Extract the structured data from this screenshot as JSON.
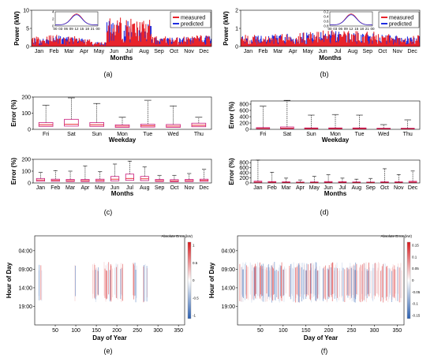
{
  "captions": [
    "(a)",
    "(b)",
    "(c)",
    "(d)",
    "(e)",
    "(f)"
  ],
  "colors": {
    "measured": "#e8232b",
    "predicted": "#1f2de0",
    "box": "#c8197a",
    "whisker": "#000000",
    "grid_bg": "#ffffff",
    "heat_pos": "#d7191c",
    "heat_neg": "#2b5fb0"
  },
  "chart_data": [
    {
      "panel": "a",
      "type": "area",
      "xlabel": "Months",
      "ylabel": "Power (kW)",
      "ylim": [
        0,
        10
      ],
      "yticks": [
        "0",
        "5",
        "10"
      ],
      "categories": [
        "Jan",
        "Feb",
        "Mar",
        "Apr",
        "May",
        "Jun",
        "Jul",
        "Aug",
        "Sep",
        "Oct",
        "Nov",
        "Dec"
      ],
      "series": [
        {
          "name": "measured",
          "values": [
            2.5,
            3.0,
            2.6,
            2.2,
            1.2,
            7.5,
            7.0,
            6.8,
            2.6,
            2.4,
            2.7,
            2.9
          ]
        },
        {
          "name": "predicted",
          "values": [
            2.3,
            2.8,
            2.4,
            2.0,
            1.1,
            6.6,
            6.4,
            6.0,
            2.4,
            2.2,
            2.5,
            2.7
          ]
        }
      ],
      "legend": "top-right",
      "inset": {
        "ylim": [
          0,
          5
        ],
        "yticks": [
          "0",
          "2",
          "4"
        ],
        "xticks": [
          "00",
          "03",
          "06",
          "09",
          "12",
          "15",
          "18",
          "21",
          "00"
        ]
      }
    },
    {
      "panel": "b",
      "type": "area",
      "xlabel": "Months",
      "ylabel": "Power (kW)",
      "ylim": [
        0,
        2
      ],
      "yticks": [
        "0",
        "1",
        "2"
      ],
      "categories": [
        "Jan",
        "Feb",
        "Mar",
        "Apr",
        "May",
        "Jun",
        "Jul",
        "Aug",
        "Sep",
        "Oct",
        "Nov",
        "Dec"
      ],
      "series": [
        {
          "name": "measured",
          "values": [
            0.6,
            0.6,
            0.65,
            0.7,
            0.75,
            0.8,
            0.85,
            0.8,
            0.75,
            0.65,
            0.6,
            0.6
          ]
        },
        {
          "name": "predicted",
          "values": [
            0.55,
            0.55,
            0.6,
            0.65,
            0.7,
            0.75,
            0.8,
            0.75,
            0.7,
            0.6,
            0.55,
            0.55
          ]
        }
      ],
      "legend": "top-right",
      "inset": {
        "yticks": [
          "0.8",
          "0.6",
          "0.4",
          "0.2"
        ],
        "xticks": [
          "00",
          "03",
          "06",
          "09",
          "12",
          "15",
          "18",
          "21",
          "00"
        ]
      }
    },
    {
      "panel": "c-top",
      "type": "boxplot",
      "xlabel": "Weekday",
      "ylabel": "Error (%)",
      "ylim": [
        0,
        200
      ],
      "yticks": [
        "0",
        "100",
        "200"
      ],
      "categories": [
        "Fri",
        "Sat",
        "Sun",
        "Mon",
        "Tue",
        "Wed",
        "Thu"
      ],
      "boxes": [
        {
          "min": 0,
          "q1": 18,
          "median": 28,
          "q3": 42,
          "max": 150
        },
        {
          "min": 0,
          "q1": 20,
          "median": 32,
          "q3": 62,
          "max": 195
        },
        {
          "min": 0,
          "q1": 18,
          "median": 28,
          "q3": 42,
          "max": 160
        },
        {
          "min": 0,
          "q1": 12,
          "median": 20,
          "q3": 28,
          "max": 75
        },
        {
          "min": 0,
          "q1": 14,
          "median": 22,
          "q3": 32,
          "max": 180
        },
        {
          "min": 0,
          "q1": 12,
          "median": 20,
          "q3": 30,
          "max": 145
        },
        {
          "min": 0,
          "q1": 16,
          "median": 25,
          "q3": 38,
          "max": 75
        }
      ]
    },
    {
      "panel": "c-bottom",
      "type": "boxplot",
      "xlabel": "Months",
      "ylabel": "Error (%)",
      "ylim": [
        0,
        200
      ],
      "yticks": [
        "0",
        "100",
        "200"
      ],
      "categories": [
        "Jan",
        "Feb",
        "Mar",
        "Apr",
        "May",
        "Jun",
        "Jul",
        "Aug",
        "Sep",
        "Oct",
        "Nov",
        "Dec"
      ],
      "boxes": [
        {
          "min": 0,
          "q1": 15,
          "median": 25,
          "q3": 38,
          "max": 90
        },
        {
          "min": 0,
          "q1": 14,
          "median": 22,
          "q3": 32,
          "max": 105
        },
        {
          "min": 0,
          "q1": 12,
          "median": 20,
          "q3": 30,
          "max": 100
        },
        {
          "min": 0,
          "q1": 12,
          "median": 20,
          "q3": 30,
          "max": 145
        },
        {
          "min": 0,
          "q1": 12,
          "median": 22,
          "q3": 32,
          "max": 95
        },
        {
          "min": 0,
          "q1": 18,
          "median": 32,
          "q3": 55,
          "max": 160
        },
        {
          "min": 0,
          "q1": 22,
          "median": 38,
          "q3": 75,
          "max": 185
        },
        {
          "min": 0,
          "q1": 20,
          "median": 35,
          "q3": 55,
          "max": 135
        },
        {
          "min": 0,
          "q1": 12,
          "median": 20,
          "q3": 30,
          "max": 65
        },
        {
          "min": 0,
          "q1": 10,
          "median": 18,
          "q3": 28,
          "max": 65
        },
        {
          "min": 0,
          "q1": 12,
          "median": 20,
          "q3": 30,
          "max": 80
        },
        {
          "min": 0,
          "q1": 14,
          "median": 22,
          "q3": 32,
          "max": 115
        }
      ]
    },
    {
      "panel": "d-top",
      "type": "boxplot",
      "xlabel": "Weekday",
      "ylabel": "Error (%)",
      "ylim": [
        0,
        900
      ],
      "yticks": [
        "0",
        "200",
        "400",
        "600",
        "800"
      ],
      "categories": [
        "Fri",
        "Sat",
        "Sun",
        "Mon",
        "Tue",
        "Wed",
        "Thu"
      ],
      "boxes": [
        {
          "min": 0,
          "q1": 15,
          "median": 30,
          "q3": 55,
          "max": 740
        },
        {
          "min": 0,
          "q1": 20,
          "median": 40,
          "q3": 75,
          "max": 920
        },
        {
          "min": 0,
          "q1": 12,
          "median": 25,
          "q3": 45,
          "max": 450
        },
        {
          "min": 0,
          "q1": 12,
          "median": 25,
          "q3": 45,
          "max": 470
        },
        {
          "min": 0,
          "q1": 12,
          "median": 25,
          "q3": 45,
          "max": 450
        },
        {
          "min": 0,
          "q1": 10,
          "median": 20,
          "q3": 35,
          "max": 150
        },
        {
          "min": 0,
          "q1": 10,
          "median": 20,
          "q3": 35,
          "max": 300
        }
      ]
    },
    {
      "panel": "d-bottom",
      "type": "boxplot",
      "xlabel": "Months",
      "ylabel": "Error (%)",
      "ylim": [
        0,
        900
      ],
      "yticks": [
        "0",
        "200",
        "400",
        "600",
        "800"
      ],
      "categories": [
        "Jan",
        "Feb",
        "Mar",
        "Apr",
        "May",
        "Jun",
        "Jul",
        "Aug",
        "Sep",
        "Oct",
        "Nov",
        "Dec"
      ],
      "boxes": [
        {
          "min": 0,
          "q1": 15,
          "median": 35,
          "q3": 70,
          "max": 900
        },
        {
          "min": 0,
          "q1": 15,
          "median": 30,
          "q3": 55,
          "max": 420
        },
        {
          "min": 0,
          "q1": 12,
          "median": 25,
          "q3": 45,
          "max": 190
        },
        {
          "min": 0,
          "q1": 10,
          "median": 20,
          "q3": 35,
          "max": 120
        },
        {
          "min": 0,
          "q1": 10,
          "median": 20,
          "q3": 40,
          "max": 260
        },
        {
          "min": 0,
          "q1": 12,
          "median": 28,
          "q3": 55,
          "max": 320
        },
        {
          "min": 0,
          "q1": 12,
          "median": 28,
          "q3": 50,
          "max": 190
        },
        {
          "min": 0,
          "q1": 10,
          "median": 20,
          "q3": 40,
          "max": 150
        },
        {
          "min": 0,
          "q1": 10,
          "median": 20,
          "q3": 35,
          "max": 180
        },
        {
          "min": 0,
          "q1": 12,
          "median": 25,
          "q3": 45,
          "max": 560
        },
        {
          "min": 0,
          "q1": 12,
          "median": 25,
          "q3": 45,
          "max": 330
        },
        {
          "min": 0,
          "q1": 15,
          "median": 35,
          "q3": 65,
          "max": 470
        }
      ]
    },
    {
      "panel": "e",
      "type": "heatmap",
      "xlabel": "Day of Year",
      "ylabel": "Hour of Day",
      "xticks": [
        "50",
        "100",
        "150",
        "200",
        "250",
        "300",
        "350"
      ],
      "yticks": [
        "04:00",
        "09:00",
        "14:00",
        "19:00"
      ],
      "colorbar_title": "Absolute Error (kW)",
      "colorbar_ticks": [
        "1",
        "0.5",
        "0",
        "-0.5",
        "-1"
      ]
    },
    {
      "panel": "f",
      "type": "heatmap",
      "xlabel": "Day of Year",
      "ylabel": "Hour of Day",
      "xticks": [
        "50",
        "100",
        "150",
        "200",
        "250",
        "300",
        "350"
      ],
      "yticks": [
        "04:00",
        "09:00",
        "14:00",
        "19:00"
      ],
      "colorbar_title": "Absolute Error (kW)",
      "colorbar_ticks": [
        "0.15",
        "0.1",
        "0.05",
        "0",
        "-0.05",
        "-0.1",
        "-0.15"
      ]
    }
  ]
}
